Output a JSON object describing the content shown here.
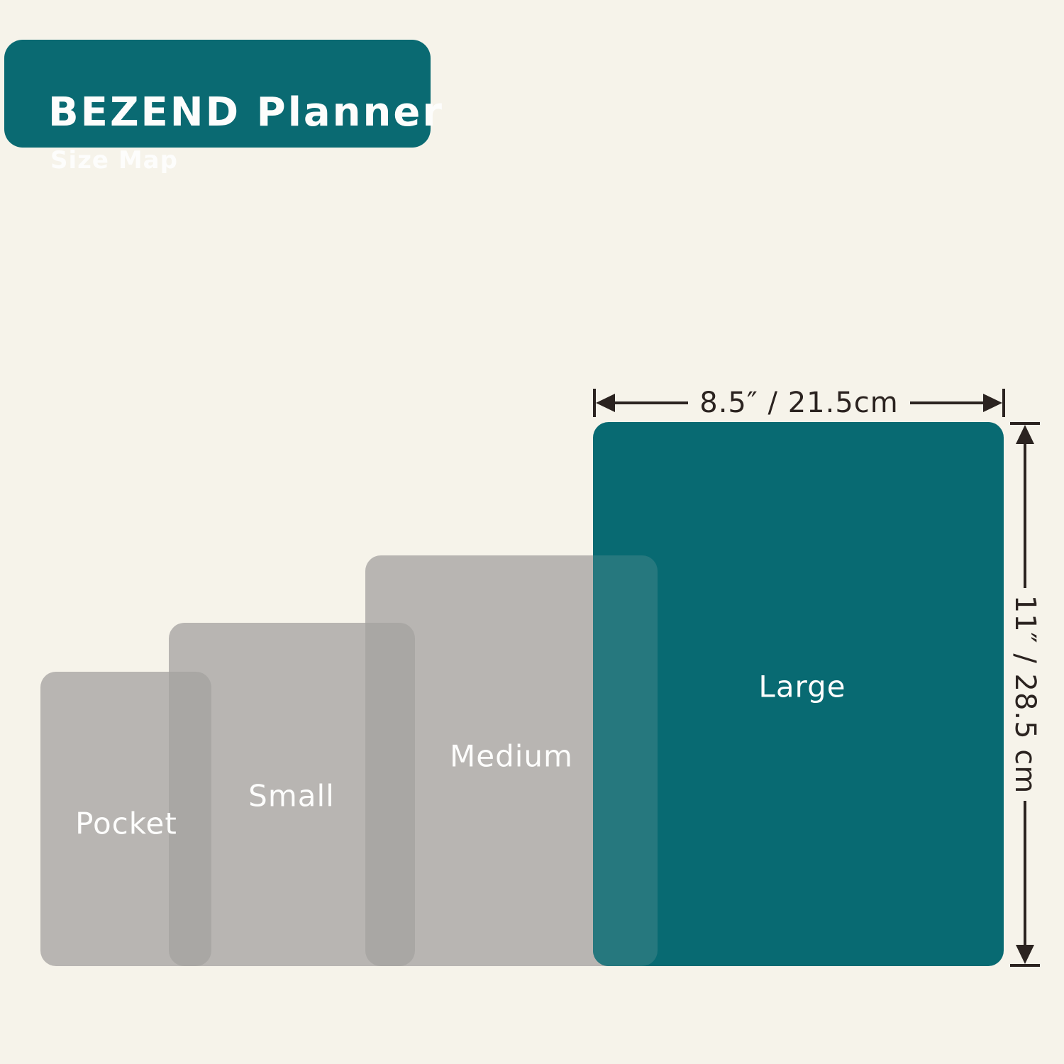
{
  "header": {
    "title": "BEZEND Planner",
    "subtitle": "Size Map"
  },
  "diagram": {
    "sizes": [
      {
        "label": "Pocket"
      },
      {
        "label": "Small"
      },
      {
        "label": "Medium"
      },
      {
        "label": "Large",
        "width_label": "8.5″ / 21.5cm",
        "height_label": "11″ / 28.5 cm"
      }
    ],
    "colors": {
      "teal": "#086a72",
      "teal_gray_overlap": "#26787e",
      "gray": "#b8b5b2",
      "gray_gray_overlap": "#a9a7a4",
      "background": "#f6f3ea",
      "ink": "#2b2320",
      "label_text": "#fdfdfc"
    }
  }
}
